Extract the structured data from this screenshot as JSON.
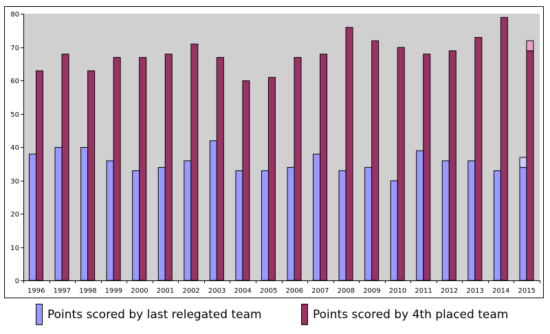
{
  "chart_data": {
    "type": "bar",
    "categories": [
      "1996",
      "1997",
      "1998",
      "1999",
      "2000",
      "2001",
      "2002",
      "2003",
      "2004",
      "2005",
      "2006",
      "2007",
      "2008",
      "2009",
      "2010",
      "2011",
      "2012",
      "2013",
      "2014",
      "2015"
    ],
    "series": [
      {
        "name": "Points scored by last relegated team",
        "color": "#9999ff",
        "values": [
          38,
          40,
          40,
          36,
          33,
          34,
          36,
          42,
          33,
          33,
          34,
          38,
          33,
          34,
          30,
          39,
          36,
          36,
          33,
          34
        ]
      },
      {
        "name": "Points scored by 4th placed team",
        "color": "#993366",
        "values": [
          63,
          68,
          63,
          67,
          67,
          68,
          71,
          67,
          60,
          61,
          67,
          68,
          76,
          72,
          70,
          68,
          69,
          73,
          79,
          69
        ]
      }
    ],
    "projected": [
      {
        "series": 0,
        "category": "2015",
        "from": 34,
        "to": 37,
        "color": "#ccccff"
      },
      {
        "series": 1,
        "category": "2015",
        "from": 69,
        "to": 72,
        "color": "#e8a0c8"
      }
    ],
    "ylim": [
      0,
      80
    ],
    "yticks": [
      0,
      10,
      20,
      30,
      40,
      50,
      60,
      70,
      80
    ],
    "grid": false,
    "plot_background": "#d0d0d0",
    "legend_position": "bottom"
  },
  "legend": {
    "items": [
      {
        "label": "Points scored by last relegated team",
        "color": "#9999ff"
      },
      {
        "label": "Points scored by 4th placed team",
        "color": "#993366"
      }
    ]
  }
}
